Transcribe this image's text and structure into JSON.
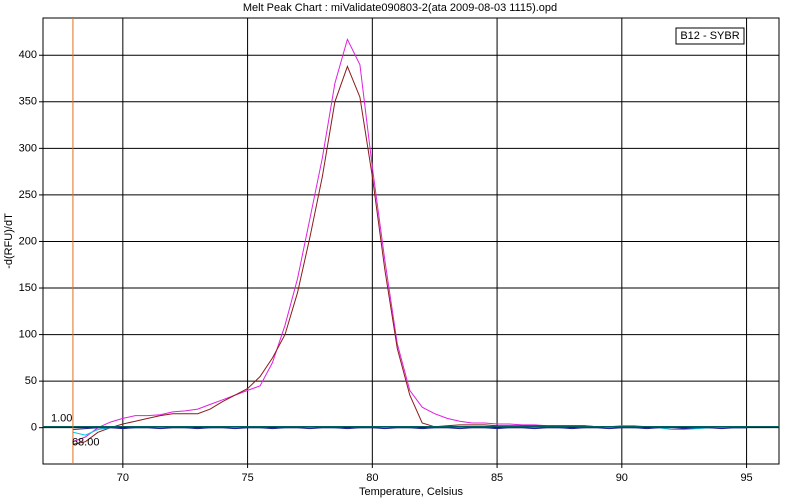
{
  "chart_data": {
    "type": "line",
    "title": "Melt Peak Chart : miValidate090803-2(ata 2009-08-03 1115).opd",
    "x_label": "Temperature, Celsius",
    "y_label": "-d(RFU)/dT",
    "legend_title": "B12 - SYBR",
    "xlim": [
      66.8,
      96.3
    ],
    "xticks": [
      70,
      75,
      80,
      85,
      90,
      95
    ],
    "ylim": [
      -39,
      440
    ],
    "yticks": [
      0,
      50,
      100,
      150,
      200,
      250,
      300,
      350,
      400
    ],
    "grid": true,
    "threshold": {
      "value": 1,
      "label": "1.00"
    },
    "marker": {
      "value": 68,
      "label": "68.00"
    },
    "x": [
      68,
      68.5,
      69,
      69.5,
      70,
      70.5,
      71,
      71.5,
      72,
      72.5,
      73,
      73.5,
      74,
      74.5,
      75,
      75.5,
      76,
      76.5,
      77,
      77.5,
      78,
      78.5,
      79,
      79.5,
      80,
      80.5,
      81,
      81.5,
      82,
      82.5,
      83,
      83.5,
      84,
      84.5,
      85,
      85.5,
      86,
      86.5,
      87,
      87.5,
      88,
      88.5,
      89,
      89.5,
      90,
      90.5,
      91,
      91.5,
      92,
      92.5,
      93,
      93.5,
      94,
      94.5,
      95
    ],
    "series": [
      {
        "color": "#e020e0",
        "values": [
          -15,
          -10,
          0,
          6,
          10,
          13,
          13,
          14,
          17,
          18,
          20,
          25,
          30,
          35,
          40,
          45,
          70,
          110,
          160,
          225,
          290,
          370,
          417,
          390,
          280,
          180,
          90,
          40,
          22,
          15,
          10,
          7,
          5,
          5,
          4,
          4,
          3,
          3,
          2,
          2,
          2,
          2,
          1,
          1,
          2,
          2,
          1,
          1,
          1,
          1,
          1,
          0,
          0,
          0,
          0
        ]
      },
      {
        "color": "#8b1a1a",
        "values": [
          -18,
          -15,
          -5,
          0,
          4,
          7,
          10,
          13,
          15,
          15,
          15,
          20,
          28,
          35,
          42,
          55,
          75,
          100,
          145,
          205,
          270,
          350,
          388,
          355,
          270,
          170,
          85,
          35,
          5,
          1,
          2,
          3,
          3,
          3,
          2,
          2,
          2,
          2,
          2,
          2,
          2,
          2,
          1,
          1,
          1,
          1,
          1,
          1,
          1,
          1,
          1,
          0,
          0,
          0,
          0
        ]
      },
      {
        "color": "#00c8e0",
        "values": [
          -5,
          -8,
          -2,
          0,
          1,
          0,
          1,
          0,
          1,
          0,
          1,
          0,
          1,
          0,
          1,
          0,
          1,
          0,
          1,
          0,
          1,
          0,
          1,
          0,
          1,
          0,
          1,
          0,
          1,
          0,
          1,
          0,
          1,
          0,
          1,
          0,
          1,
          0,
          1,
          0,
          1,
          0,
          1,
          0,
          1,
          0,
          1,
          0,
          -2,
          -2,
          -1,
          0,
          0,
          0,
          0
        ]
      },
      {
        "color": "#202090",
        "values": [
          -2,
          -1,
          0,
          0,
          -1,
          0,
          0,
          -1,
          0,
          0,
          -1,
          0,
          0,
          -1,
          0,
          0,
          -1,
          0,
          0,
          -1,
          0,
          0,
          -1,
          0,
          0,
          -1,
          0,
          0,
          -1,
          0,
          0,
          -1,
          0,
          0,
          -1,
          0,
          0,
          -1,
          0,
          0,
          -1,
          0,
          0,
          -1,
          0,
          0,
          -1,
          0,
          0,
          -1,
          0,
          0,
          -1,
          0,
          0
        ]
      }
    ]
  }
}
